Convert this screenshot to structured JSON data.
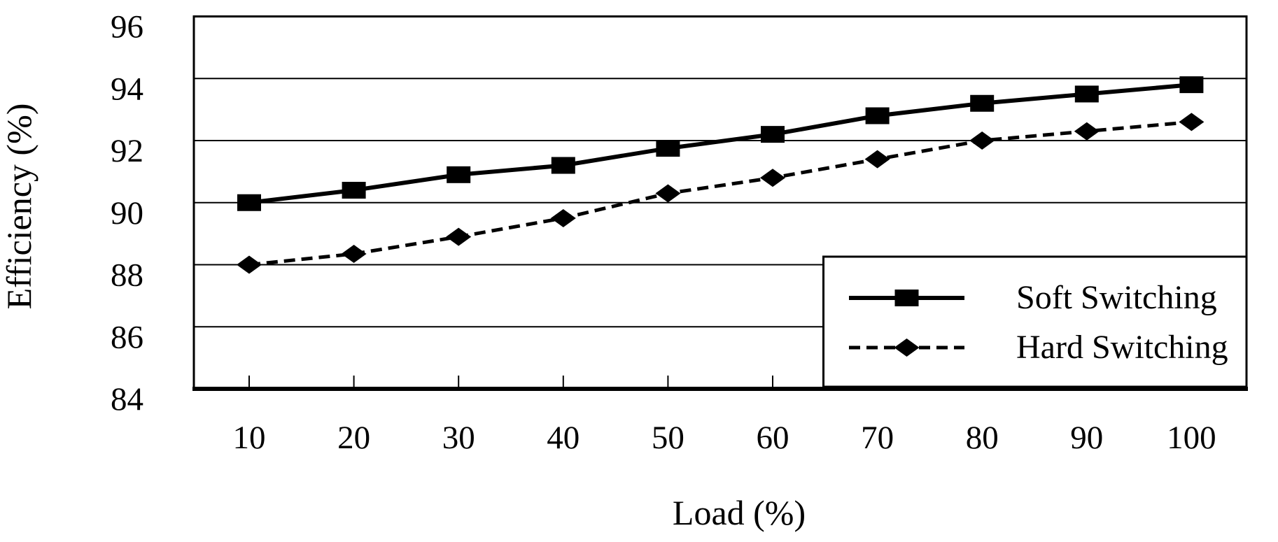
{
  "chart_data": {
    "type": "line",
    "title": "",
    "xlabel": "Load (%)",
    "ylabel": "Efficiency (%)",
    "x": [
      10,
      20,
      30,
      40,
      50,
      60,
      70,
      80,
      90,
      100
    ],
    "y_ticks": [
      84,
      86,
      88,
      90,
      92,
      94,
      96
    ],
    "ylim": [
      84,
      96
    ],
    "grid": "horizontal",
    "legend_position": "inside-bottom-right",
    "series": [
      {
        "name": "Soft Switching",
        "line_style": "solid",
        "marker": "square",
        "color": "#000000",
        "values": [
          90.0,
          90.4,
          90.9,
          91.2,
          91.75,
          92.2,
          92.8,
          93.2,
          93.5,
          93.8
        ]
      },
      {
        "name": "Hard Switching",
        "line_style": "dashed",
        "marker": "diamond",
        "color": "#000000",
        "values": [
          88.0,
          88.35,
          88.9,
          89.5,
          90.3,
          90.8,
          91.4,
          92.0,
          92.3,
          92.6
        ]
      }
    ],
    "colors": {
      "foreground": "#000000",
      "background": "#ffffff",
      "gridline": "#000000"
    }
  }
}
